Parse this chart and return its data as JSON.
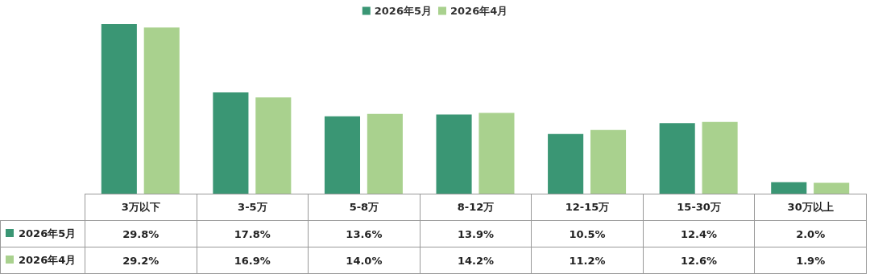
{
  "chart_data": {
    "type": "bar",
    "categories": [
      "3万以下",
      "3-5万",
      "5-8万",
      "8-12万",
      "12-15万",
      "15-30万",
      "30万以上"
    ],
    "series": [
      {
        "name": "2026年5月",
        "color": "#3a9674",
        "values": [
          29.8,
          17.8,
          13.6,
          13.9,
          10.5,
          12.4,
          2.0
        ],
        "value_labels": [
          "29.8%",
          "17.8%",
          "13.6%",
          "13.9%",
          "10.5%",
          "12.4%",
          "2.0%"
        ]
      },
      {
        "name": "2026年4月",
        "color": "#a9d18e",
        "values": [
          29.2,
          16.9,
          14.0,
          14.2,
          11.2,
          12.6,
          1.9
        ],
        "value_labels": [
          "29.2%",
          "16.9%",
          "14.0%",
          "14.2%",
          "11.2%",
          "12.6%",
          "1.9%"
        ]
      }
    ],
    "legend": "top",
    "grid": false,
    "tick_labels": "x"
  }
}
